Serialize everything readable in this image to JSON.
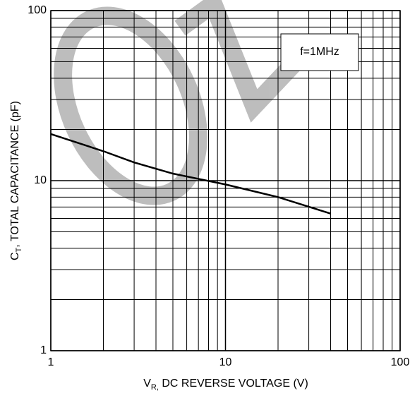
{
  "chart_data": {
    "type": "line",
    "x_label": {
      "main": "V",
      "sub": "R,",
      "rest": " DC REVERSE VOLTAGE (V)"
    },
    "y_label": {
      "main": "C",
      "sub": "T",
      "rest": ", TOTAL CAPACITANCE (pF)"
    },
    "annotation": "f=1MHz",
    "x": [
      1,
      2,
      3,
      5,
      10,
      20,
      40
    ],
    "series": [
      {
        "color": "#000000",
        "values": [
          18.8,
          14.9,
          12.8,
          11,
          9.5,
          8,
          6.4
        ]
      }
    ],
    "x_log": true,
    "y_log": true,
    "xlim": [
      1,
      100
    ],
    "ylim": [
      1,
      100
    ],
    "xticks": [
      1,
      10,
      100
    ],
    "yticks": [
      1,
      10,
      100
    ],
    "x_minor_ticks": [
      2,
      3,
      4,
      5,
      6,
      7,
      8,
      9,
      20,
      30,
      40,
      50,
      60,
      70,
      80,
      90
    ],
    "y_minor_ticks": [
      2,
      3,
      4,
      5,
      6,
      7,
      8,
      9,
      20,
      30,
      40,
      50,
      60,
      70,
      80,
      90
    ],
    "grid": true
  }
}
